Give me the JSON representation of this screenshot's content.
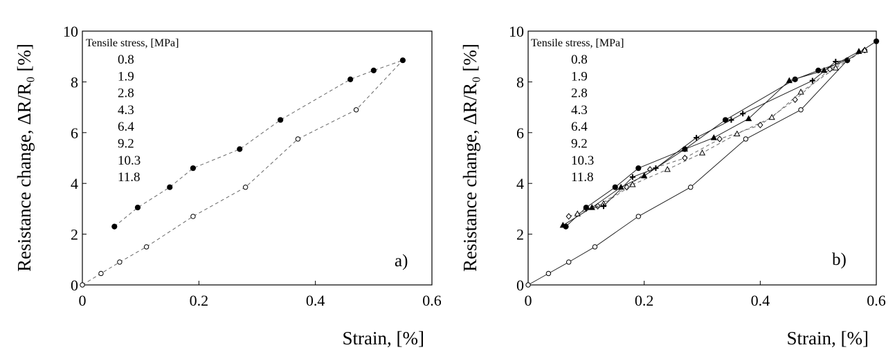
{
  "chart_data": [
    {
      "type": "line",
      "panel_label": "a)",
      "xlabel": "Strain, [%]",
      "ylabel": "Resistance change, ΔR/R₀ [%]",
      "xlim": [
        0,
        0.6
      ],
      "ylim": [
        0,
        10
      ],
      "xticks": [
        "0",
        "0.2",
        "0.4",
        "0.6"
      ],
      "yticks": [
        "0",
        "2",
        "4",
        "6",
        "8",
        "10"
      ],
      "legend_title": "Tensile stress, [MPa]",
      "legend_entries": [
        "0.8",
        "1.9",
        "2.8",
        "4.3",
        "6.4",
        "9.2",
        "10.3",
        "11.8"
      ],
      "series": [
        {
          "marker": "open-circle",
          "line": "dashed",
          "x": [
            0.0,
            0.032,
            0.064,
            0.11,
            0.19,
            0.28,
            0.37,
            0.47,
            0.55
          ],
          "y": [
            0.0,
            0.45,
            0.9,
            1.5,
            2.7,
            3.85,
            5.75,
            6.9,
            8.85
          ]
        },
        {
          "marker": "filled-circle",
          "line": "dashed",
          "x": [
            0.055,
            0.095,
            0.15,
            0.19,
            0.27,
            0.34,
            0.46,
            0.5,
            0.55
          ],
          "y": [
            2.3,
            3.05,
            3.85,
            4.6,
            5.35,
            6.5,
            8.1,
            8.45,
            8.85
          ]
        }
      ]
    },
    {
      "type": "line",
      "panel_label": "b)",
      "xlabel": "Strain, [%]",
      "ylabel": "Resistance change, ΔR/R₀ [%]",
      "xlim": [
        0,
        0.6
      ],
      "ylim": [
        0,
        10
      ],
      "xticks": [
        "0",
        "0.2",
        "0.4",
        "0.6"
      ],
      "yticks": [
        "0",
        "2",
        "4",
        "6",
        "8",
        "10"
      ],
      "legend_title": "Tensile stress, [MPa]",
      "legend_entries": [
        "0.8",
        "1.9",
        "2.8",
        "4.3",
        "6.4",
        "9.2",
        "10.3",
        "11.8"
      ],
      "series": [
        {
          "marker": "open-circle",
          "line": "solid",
          "x": [
            0.0,
            0.035,
            0.07,
            0.115,
            0.19,
            0.28,
            0.375,
            0.47,
            0.55
          ],
          "y": [
            0.0,
            0.45,
            0.9,
            1.5,
            2.7,
            3.85,
            5.75,
            6.9,
            8.85
          ]
        },
        {
          "marker": "filled-circle",
          "line": "solid",
          "x": [
            0.065,
            0.1,
            0.15,
            0.19,
            0.27,
            0.34,
            0.46,
            0.5,
            0.55,
            0.6
          ],
          "y": [
            2.3,
            3.05,
            3.85,
            4.6,
            5.35,
            6.5,
            8.1,
            8.45,
            8.85,
            9.6
          ]
        },
        {
          "marker": "open-diamond",
          "line": "dashed",
          "x": [
            0.07,
            0.12,
            0.17,
            0.21,
            0.27,
            0.33,
            0.4,
            0.46,
            0.52,
            0.58
          ],
          "y": [
            2.7,
            3.1,
            3.85,
            4.55,
            5.0,
            5.75,
            6.3,
            7.3,
            8.5,
            9.25
          ]
        },
        {
          "marker": "open-triangle",
          "line": "dashed",
          "x": [
            0.085,
            0.13,
            0.18,
            0.24,
            0.3,
            0.36,
            0.42,
            0.47,
            0.53,
            0.58
          ],
          "y": [
            2.8,
            3.2,
            3.95,
            4.55,
            5.2,
            5.95,
            6.6,
            7.6,
            8.55,
            9.25
          ]
        },
        {
          "marker": "filled-triangle",
          "line": "solid",
          "x": [
            0.06,
            0.11,
            0.16,
            0.2,
            0.27,
            0.32,
            0.38,
            0.45,
            0.51,
            0.57
          ],
          "y": [
            2.35,
            3.05,
            3.85,
            4.3,
            5.35,
            5.8,
            6.55,
            8.05,
            8.45,
            9.2
          ]
        },
        {
          "marker": "plus",
          "line": "solid",
          "x": [
            0.1,
            0.13,
            0.18,
            0.22,
            0.29,
            0.35,
            0.37,
            0.49,
            0.53,
            0.55
          ],
          "y": [
            3.0,
            3.1,
            4.25,
            4.6,
            5.8,
            6.5,
            6.75,
            8.05,
            8.8,
            8.85
          ]
        }
      ]
    }
  ]
}
